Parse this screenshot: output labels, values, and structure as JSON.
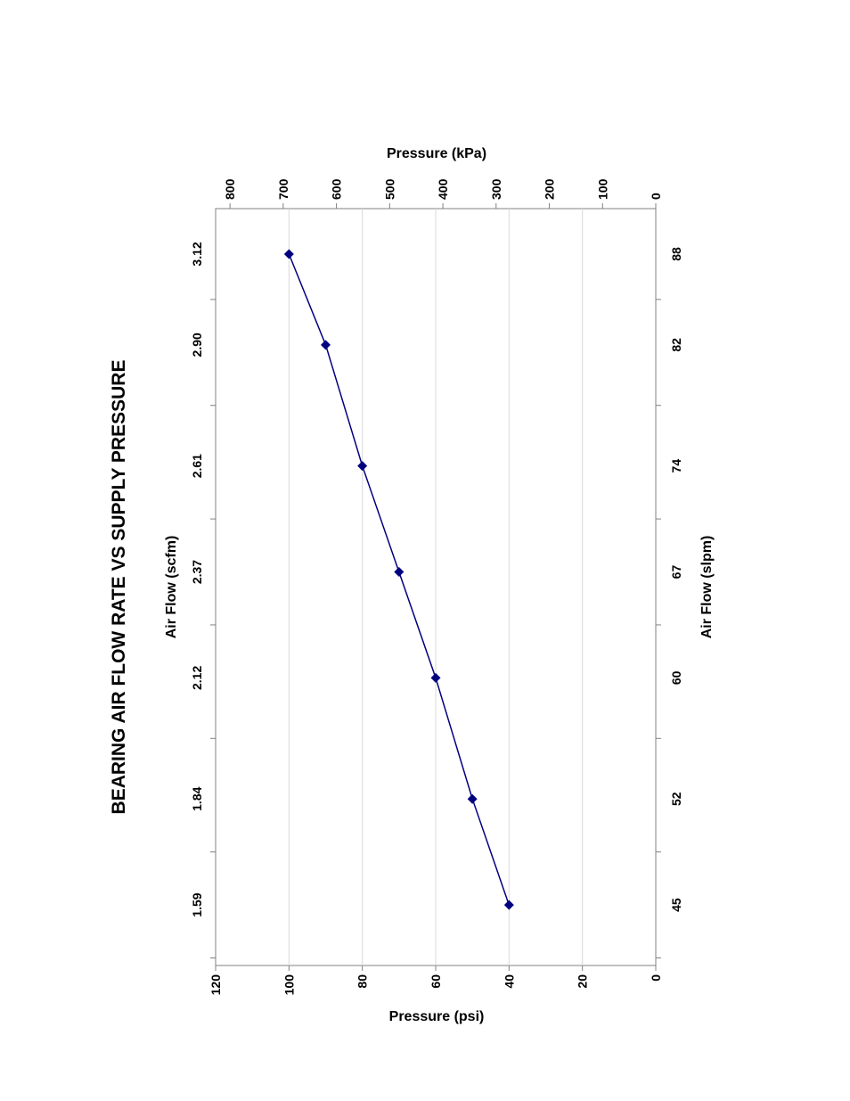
{
  "chart_data": {
    "type": "line",
    "title": "BEARING AIR FLOW RATE VS SUPPLY PRESSURE",
    "orientation": "rotated 90° counter-clockwise",
    "x_top_label": "Air Flow (scfm)",
    "x_bottom_label": "Air Flow (slpm)",
    "y_left_label": "Pressure (psi)",
    "y_right_label": "Pressure (kPa)",
    "x_range": [
      41,
      91
    ],
    "x_ticks_bottom": [
      45,
      52,
      60,
      67,
      74,
      82,
      88
    ],
    "x_ticks_top": [
      "1.59",
      "1.84",
      "2.12",
      "2.37",
      "2.61",
      "2.90",
      "3.12"
    ],
    "y_range": [
      0,
      120
    ],
    "y_ticks": [
      0,
      20,
      40,
      60,
      80,
      100,
      120
    ],
    "y2_range": [
      0,
      827
    ],
    "y2_ticks": [
      0,
      100,
      200,
      300,
      400,
      500,
      600,
      700,
      800
    ],
    "grid": "horizontal gridlines at each psi tick",
    "legend": "none",
    "series": [
      {
        "color": "#000080",
        "marker": "diamond",
        "x": [
          45,
          52,
          60,
          67,
          74,
          82,
          88
        ],
        "y": [
          40,
          50,
          60,
          70,
          80,
          90,
          100
        ]
      }
    ]
  }
}
